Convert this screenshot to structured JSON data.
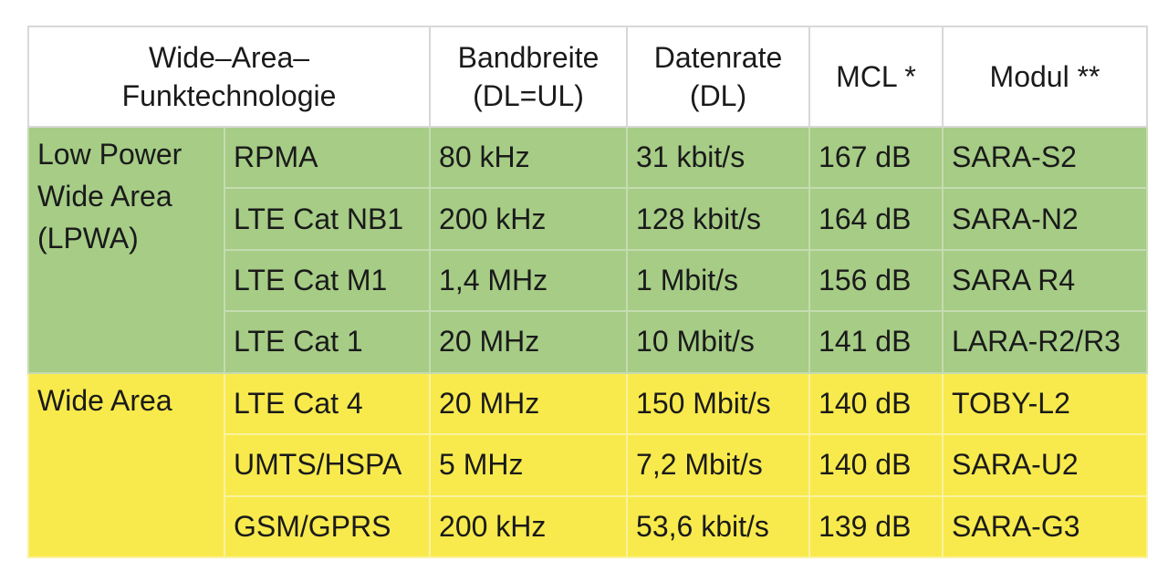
{
  "table": {
    "header": [
      [
        "Wide–Area–",
        "Funktechnologie"
      ],
      [
        "Bandbreite",
        "(DL=UL)"
      ],
      [
        "Datenrate",
        "(DL)"
      ],
      [
        "MCL *"
      ],
      [
        "Modul **"
      ]
    ],
    "groups": [
      {
        "label": "Low Power Wide Area (LPWA)",
        "rows": [
          [
            "RPMA",
            "80 kHz",
            "31 kbit/s",
            "167 dB",
            "SARA-S2"
          ],
          [
            "LTE Cat NB1",
            "200 kHz",
            "128 kbit/s",
            "164 dB",
            "SARA-N2"
          ],
          [
            "LTE Cat M1",
            "1,4 MHz",
            "1 Mbit/s",
            "156 dB",
            "SARA R4"
          ],
          [
            "LTE Cat 1",
            "20 MHz",
            "10 Mbit/s",
            "141 dB",
            "LARA-R2/R3"
          ]
        ]
      },
      {
        "label": "Wide Area",
        "rows": [
          [
            "LTE Cat 4",
            "20 MHz",
            "150 Mbit/s",
            "140 dB",
            "TOBY-L2"
          ],
          [
            "UMTS/HSPA",
            "5 MHz",
            "7,2 Mbit/s",
            "140 dB",
            "SARA-U2"
          ],
          [
            "GSM/GPRS",
            "200 kHz",
            "53,6 kbit/s",
            "139 dB",
            "SARA-G3"
          ]
        ]
      }
    ]
  }
}
